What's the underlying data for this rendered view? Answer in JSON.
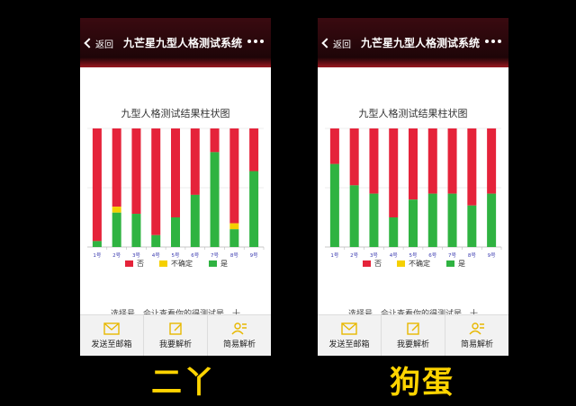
{
  "colors": {
    "no": "#e5233a",
    "unsure": "#f5d000",
    "yes": "#2fb341",
    "axis": "#bbbbbb"
  },
  "phones": [
    {
      "nav": {
        "back_label": "返回",
        "title": "九芒星九型人格测试系统"
      },
      "body_peek": "选择号，会让查看你的得测试是，十",
      "tabbar": [
        {
          "label": "发送至邮箱",
          "icon": "mail-icon"
        },
        {
          "label": "我要解析",
          "icon": "edit-icon"
        },
        {
          "label": "简易解析",
          "icon": "people-icon"
        }
      ],
      "caption": "二丫",
      "chart_data": {
        "type": "bar",
        "title": "九型人格测试结果柱状图",
        "categories": [
          "1号",
          "2号",
          "3号",
          "4号",
          "5号",
          "6号",
          "7号",
          "8号",
          "9号"
        ],
        "series": [
          {
            "name": "否",
            "values": [
              95,
              66,
              72,
              90,
              75,
              56,
              20,
              80,
              36
            ]
          },
          {
            "name": "不确定",
            "values": [
              0,
              5,
              0,
              0,
              0,
              0,
              0,
              5,
              0
            ]
          },
          {
            "name": "是",
            "values": [
              5,
              29,
              28,
              10,
              25,
              44,
              80,
              15,
              64
            ]
          }
        ],
        "ylim": [
          0,
          100
        ],
        "legend": [
          "否",
          "不确定",
          "是"
        ]
      }
    },
    {
      "nav": {
        "back_label": "返回",
        "title": "九芒星九型人格测试系统"
      },
      "body_peek": "选择号，会让查看你的得测试是，十",
      "tabbar": [
        {
          "label": "发送至邮箱",
          "icon": "mail-icon"
        },
        {
          "label": "我要解析",
          "icon": "edit-icon"
        },
        {
          "label": "简易解析",
          "icon": "people-icon"
        }
      ],
      "caption": "狗蛋",
      "chart_data": {
        "type": "bar",
        "title": "九型人格测试结果柱状图",
        "categories": [
          "1号",
          "2号",
          "3号",
          "4号",
          "5号",
          "6号",
          "7号",
          "8号",
          "9号"
        ],
        "series": [
          {
            "name": "否",
            "values": [
              30,
              48,
              55,
              75,
              60,
              55,
              55,
              65,
              55
            ]
          },
          {
            "name": "不确定",
            "values": [
              0,
              0,
              0,
              0,
              0,
              0,
              0,
              0,
              0
            ]
          },
          {
            "name": "是",
            "values": [
              70,
              52,
              45,
              25,
              40,
              45,
              45,
              35,
              45
            ]
          }
        ],
        "ylim": [
          0,
          100
        ],
        "legend": [
          "否",
          "不确定",
          "是"
        ]
      }
    }
  ]
}
